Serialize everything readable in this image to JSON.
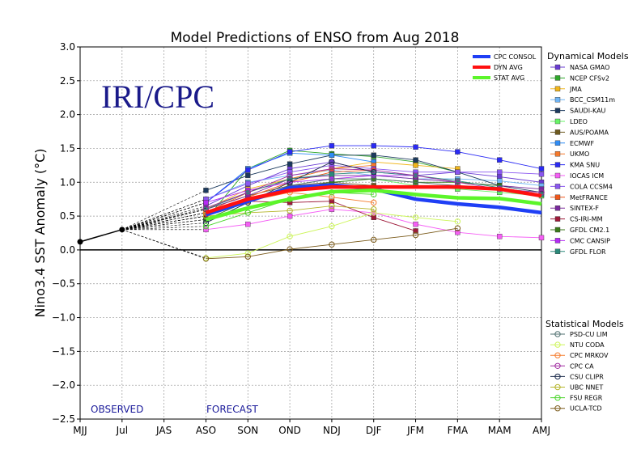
{
  "chart_data": {
    "type": "line",
    "title": "Model Predictions of ENSO from Aug 2018",
    "ylabel": "Nino3.4 SST Anomaly (°C)",
    "xlabel": "",
    "ylim": [
      -2.5,
      3.0
    ],
    "yticks": [
      -2.5,
      -2.0,
      -1.5,
      -1.0,
      -0.5,
      0.0,
      0.5,
      1.0,
      1.5,
      2.0,
      2.5,
      3.0
    ],
    "ytick_labels": [
      "−2.5",
      "−2.0",
      "−1.5",
      "−1.0",
      "−0.5",
      "0.0",
      "0.5",
      "1.0",
      "1.5",
      "2.0",
      "2.5",
      "3.0"
    ],
    "categories": [
      "MJJ",
      "Jul",
      "JAS",
      "ASO",
      "SON",
      "OND",
      "NDJ",
      "DJF",
      "JFM",
      "FMA",
      "MAM",
      "AMJ"
    ],
    "grid": true,
    "logo_text": "IRI/CPC",
    "observed_label": "OBSERVED",
    "forecast_label": "FORECAST",
    "observed": {
      "x": [
        0,
        1
      ],
      "y": [
        0.12,
        0.3
      ]
    },
    "summary_legend_title": "",
    "summary_series": [
      {
        "name": "CPC CONSOL",
        "color": "#1f3ff5",
        "values": [
          0.52,
          0.72,
          0.92,
          0.96,
          0.9,
          0.75,
          0.68,
          0.63,
          0.55
        ]
      },
      {
        "name": "DYN AVG",
        "color": "#ff1010",
        "values": [
          0.55,
          0.75,
          0.88,
          0.93,
          0.93,
          0.93,
          0.93,
          0.9,
          0.8
        ]
      },
      {
        "name": "STAT AVG",
        "color": "#5cf52a",
        "values": [
          0.45,
          0.62,
          0.75,
          0.86,
          0.88,
          0.82,
          0.77,
          0.76,
          0.68
        ]
      }
    ],
    "dynamical_title": "Dynamical Models",
    "dynamical": [
      {
        "name": "NASA GMAO",
        "color": "#6a3bd3",
        "marker": "square",
        "values": [
          0.65,
          0.95,
          1.2,
          1.3,
          1.15,
          1.1,
          1.15,
          1.08,
          1.0
        ]
      },
      {
        "name": "NCEP CFSv2",
        "color": "#2fa82b",
        "marker": "square",
        "values": [
          0.45,
          1.2,
          1.47,
          1.42,
          1.38,
          1.3,
          1.15,
          null,
          null
        ]
      },
      {
        "name": "JMA",
        "color": "#f0b51a",
        "marker": "square",
        "values": [
          0.6,
          0.9,
          1.05,
          1.2,
          1.3,
          1.25,
          1.2,
          null,
          null
        ]
      },
      {
        "name": "BCC_CSM11m",
        "color": "#6fb5f5",
        "marker": "square",
        "values": [
          0.75,
          1.0,
          1.1,
          1.18,
          1.1,
          1.05,
          1.05,
          1.02,
          0.95
        ]
      },
      {
        "name": "SAUDI-KAU",
        "color": "#1c3a5e",
        "marker": "square",
        "values": [
          0.88,
          1.1,
          1.27,
          1.4,
          1.4,
          1.33,
          1.15,
          0.95,
          0.85
        ]
      },
      {
        "name": "LDEO",
        "color": "#66f566",
        "marker": "square",
        "values": [
          0.55,
          0.75,
          0.9,
          1.0,
          1.05,
          0.95,
          0.9,
          0.85,
          0.8
        ]
      },
      {
        "name": "AUS/POAMA",
        "color": "#6e5a1e",
        "marker": "square",
        "values": [
          0.6,
          0.8,
          0.95,
          1.0,
          0.95,
          null,
          null,
          null,
          null
        ]
      },
      {
        "name": "ECMWF",
        "color": "#2f8cf5",
        "marker": "square",
        "values": [
          0.7,
          1.2,
          1.43,
          1.4,
          1.3,
          null,
          null,
          null,
          null
        ]
      },
      {
        "name": "UKMO",
        "color": "#f5792a",
        "marker": "square",
        "values": [
          0.55,
          0.85,
          1.05,
          1.2,
          1.25,
          null,
          null,
          null,
          null
        ]
      },
      {
        "name": "KMA SNU",
        "color": "#2a2af5",
        "marker": "square",
        "values": [
          0.7,
          1.18,
          1.45,
          1.54,
          1.54,
          1.52,
          1.45,
          1.33,
          1.2
        ]
      },
      {
        "name": "IOCAS ICM",
        "color": "#f55ef5",
        "marker": "square",
        "values": [
          0.3,
          0.38,
          0.5,
          0.6,
          0.55,
          0.38,
          0.26,
          0.2,
          0.18
        ]
      },
      {
        "name": "COLA CCSM4",
        "color": "#8a56f0",
        "marker": "square",
        "values": [
          0.75,
          0.98,
          1.15,
          1.25,
          1.2,
          1.15,
          1.15,
          1.15,
          1.12
        ]
      },
      {
        "name": "MetFRANCE",
        "color": "#f0561a",
        "marker": "square",
        "values": [
          0.5,
          0.78,
          1.0,
          1.15,
          1.18,
          null,
          null,
          null,
          null
        ]
      },
      {
        "name": "SINTEX-F",
        "color": "#7a2a9e",
        "marker": "square",
        "values": [
          0.6,
          0.8,
          1.05,
          1.1,
          1.1,
          1.05,
          1.0,
          0.95,
          0.9
        ]
      },
      {
        "name": "CS-IRI-MM",
        "color": "#9e1a3a",
        "marker": "square",
        "values": [
          0.5,
          0.72,
          0.7,
          0.72,
          0.48,
          0.28,
          null,
          null,
          null
        ]
      },
      {
        "name": "GFDL CM2.1",
        "color": "#3a7a1a",
        "marker": "square",
        "values": [
          0.45,
          0.72,
          0.9,
          1.0,
          1.05,
          1.0,
          1.0,
          0.95,
          null
        ]
      },
      {
        "name": "CMC CANSIP",
        "color": "#b52af5",
        "marker": "square",
        "values": [
          0.7,
          0.88,
          1.0,
          1.05,
          1.1,
          1.1,
          null,
          null,
          null
        ]
      },
      {
        "name": "GFDL FLOR",
        "color": "#2a8a7a",
        "marker": "square",
        "values": [
          0.6,
          0.85,
          1.05,
          1.12,
          1.15,
          1.1,
          1.02,
          0.92,
          0.82
        ]
      }
    ],
    "statistical_title": "Statistical Models",
    "statistical": [
      {
        "name": "PSD-CU LIM",
        "color": "#4f6f6f",
        "marker": "circle",
        "values": [
          0.5,
          0.72,
          0.95,
          1.05,
          1.05,
          1.0,
          0.95,
          0.9,
          0.85
        ]
      },
      {
        "name": "NTU CODA",
        "color": "#cdf55a",
        "marker": "circle",
        "values": [
          -0.12,
          -0.05,
          0.2,
          0.35,
          0.55,
          0.48,
          0.42,
          null,
          null
        ]
      },
      {
        "name": "CPC MRKOV",
        "color": "#f57a2a",
        "marker": "circle",
        "values": [
          0.55,
          0.72,
          0.85,
          0.78,
          0.7,
          null,
          null,
          null,
          null
        ]
      },
      {
        "name": "CPC CA",
        "color": "#a02aa0",
        "marker": "circle",
        "values": [
          0.62,
          0.85,
          1.1,
          1.2,
          1.18,
          1.1,
          1.0,
          0.9,
          0.85
        ]
      },
      {
        "name": "CSU CLIPR",
        "color": "#1a2a4a",
        "marker": "circle",
        "values": [
          0.4,
          0.7,
          1.0,
          1.3,
          1.15,
          null,
          null,
          null,
          null
        ]
      },
      {
        "name": "UBC NNET",
        "color": "#b5b52a",
        "marker": "circle",
        "values": [
          0.5,
          0.55,
          0.58,
          0.65,
          0.6,
          null,
          null,
          null,
          null
        ]
      },
      {
        "name": "FSU REGR",
        "color": "#4ad52a",
        "marker": "circle",
        "values": [
          0.35,
          0.55,
          0.75,
          0.85,
          0.82,
          null,
          null,
          null,
          null
        ]
      },
      {
        "name": "UCLA-TCD",
        "color": "#7a5a1a",
        "marker": "circle",
        "values": [
          -0.13,
          -0.1,
          0.01,
          0.08,
          0.15,
          0.22,
          0.32,
          null,
          null
        ]
      }
    ]
  }
}
